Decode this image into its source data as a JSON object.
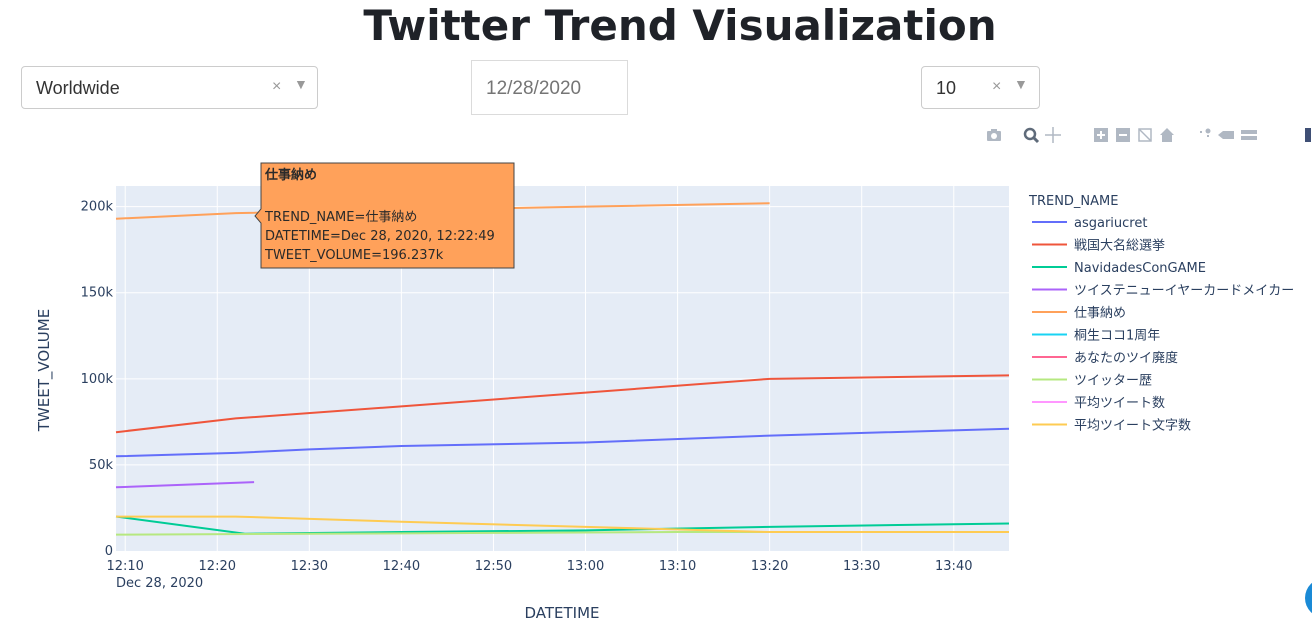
{
  "page": {
    "title": "Twitter Trend Visualization"
  },
  "controls": {
    "location": {
      "value": "Worldwide",
      "clear": "×",
      "arrow": "▼"
    },
    "date": {
      "value": "12/28/2020"
    },
    "count": {
      "value": "10",
      "clear": "×",
      "arrow": "▼"
    }
  },
  "modebar": [
    "camera-icon",
    "zoom-icon",
    "pan-icon",
    "zoom-in-icon",
    "zoom-out-icon",
    "autoscale-icon",
    "reset-axes-icon",
    "spike-lines-icon",
    "hover-closest-icon",
    "hover-compare-icon"
  ],
  "hover": {
    "title": "仕事納め",
    "line1": "TREND_NAME=仕事納め",
    "line2": "DATETIME=Dec 28, 2020, 12:22:49",
    "line3": "TWEET_VOLUME=196.237k",
    "color": "#FFA15A"
  },
  "chart_data": {
    "type": "line",
    "xlabel": "DATETIME",
    "ylabel": "TWEET_VOLUME",
    "legend_title": "TREND_NAME",
    "legend_position": "right",
    "grid": true,
    "x_date_label": "Dec 28, 2020",
    "x_ticks": [
      "12:10",
      "12:20",
      "12:30",
      "12:40",
      "12:50",
      "13:00",
      "13:10",
      "13:20",
      "13:30",
      "13:40"
    ],
    "y_ticks": [
      "0",
      "50k",
      "100k",
      "150k",
      "200k"
    ],
    "xlim": [
      "12:09",
      "13:46"
    ],
    "ylim": [
      0,
      212000
    ],
    "series": [
      {
        "name": "asgariucret",
        "color": "#636EFA",
        "x": [
          "12:09",
          "12:22",
          "12:30",
          "12:40",
          "13:00",
          "13:20",
          "13:46"
        ],
        "y": [
          55000,
          57000,
          59000,
          61000,
          63000,
          67000,
          71000
        ]
      },
      {
        "name": "戦国大名総選挙",
        "color": "#EF553B",
        "x": [
          "12:09",
          "12:22",
          "12:40",
          "13:00",
          "13:20",
          "13:46"
        ],
        "y": [
          69000,
          77000,
          84000,
          92000,
          100000,
          102000
        ]
      },
      {
        "name": "NavidadesConGAME",
        "color": "#00CC96",
        "x": [
          "12:09",
          "12:23",
          "12:40",
          "13:00",
          "13:20",
          "13:46"
        ],
        "y": [
          20000,
          10000,
          11000,
          12000,
          14000,
          16000
        ]
      },
      {
        "name": "ツイステニューイヤーカードメイカー",
        "color": "#AB63FA",
        "x": [
          "12:09",
          "12:24"
        ],
        "y": [
          37000,
          40000
        ]
      },
      {
        "name": "仕事納め",
        "color": "#FFA15A",
        "x": [
          "12:09",
          "12:22",
          "12:40",
          "13:00",
          "13:20"
        ],
        "y": [
          193000,
          196237,
          198000,
          200000,
          202000
        ]
      },
      {
        "name": "桐生ココ1周年",
        "color": "#19D3F3",
        "x": [],
        "y": []
      },
      {
        "name": "あなたのツイ廃度",
        "color": "#FF6692",
        "x": [],
        "y": []
      },
      {
        "name": "ツイッター歴",
        "color": "#B6E880",
        "x": [
          "12:09",
          "12:30",
          "12:50",
          "13:10",
          "13:30",
          "13:46"
        ],
        "y": [
          9500,
          10000,
          10500,
          11000,
          11000,
          11000
        ]
      },
      {
        "name": "平均ツイート数",
        "color": "#FF97FF",
        "x": [],
        "y": []
      },
      {
        "name": "平均ツイート文字数",
        "color": "#FECB52",
        "x": [
          "12:09",
          "12:22",
          "12:40",
          "13:00",
          "13:20",
          "13:46"
        ],
        "y": [
          20000,
          20000,
          17000,
          14000,
          11000,
          11000
        ]
      }
    ]
  }
}
